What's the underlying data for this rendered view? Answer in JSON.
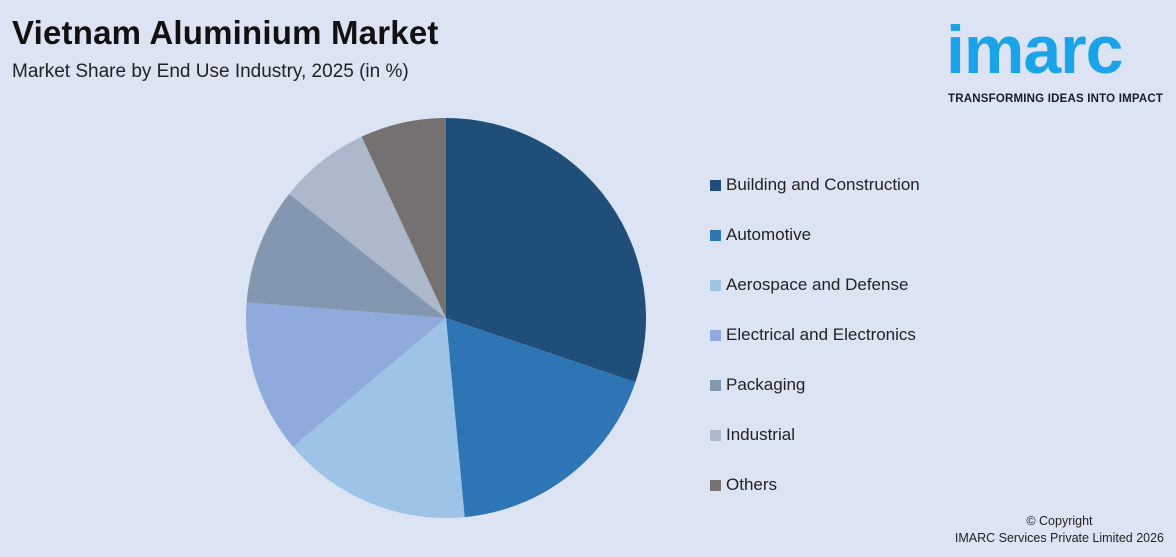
{
  "header": {
    "title": "Vietnam Aluminium Market",
    "subtitle": "Market Share by End Use Industry, 2025 (in %)"
  },
  "logo": {
    "word": "imarc",
    "tagline": "TRANSFORMING IDEAS INTO IMPACT",
    "color": "#1aa3e8"
  },
  "footer": {
    "line1": "© Copyright",
    "line2": "IMARC Services Private Limited 2026"
  },
  "chart_data": {
    "type": "pie",
    "title": "Vietnam Aluminium Market",
    "subtitle": "Market Share by End Use Industry, 2025 (in %)",
    "categories": [
      "Building and Construction",
      "Automotive",
      "Aerospace and Defense",
      "Electrical and Electronics",
      "Packaging",
      "Industrial",
      "Others"
    ],
    "values": [
      30.5,
      18.5,
      15.5,
      12.5,
      9.5,
      7.5,
      7.0
    ],
    "colors": [
      "#1f4e79",
      "#2e75b6",
      "#9dc3e6",
      "#8faadc",
      "#8497b0",
      "#adb9ca",
      "#767171"
    ],
    "start_angle_deg": 0,
    "direction": "clockwise",
    "legend_position": "right"
  }
}
